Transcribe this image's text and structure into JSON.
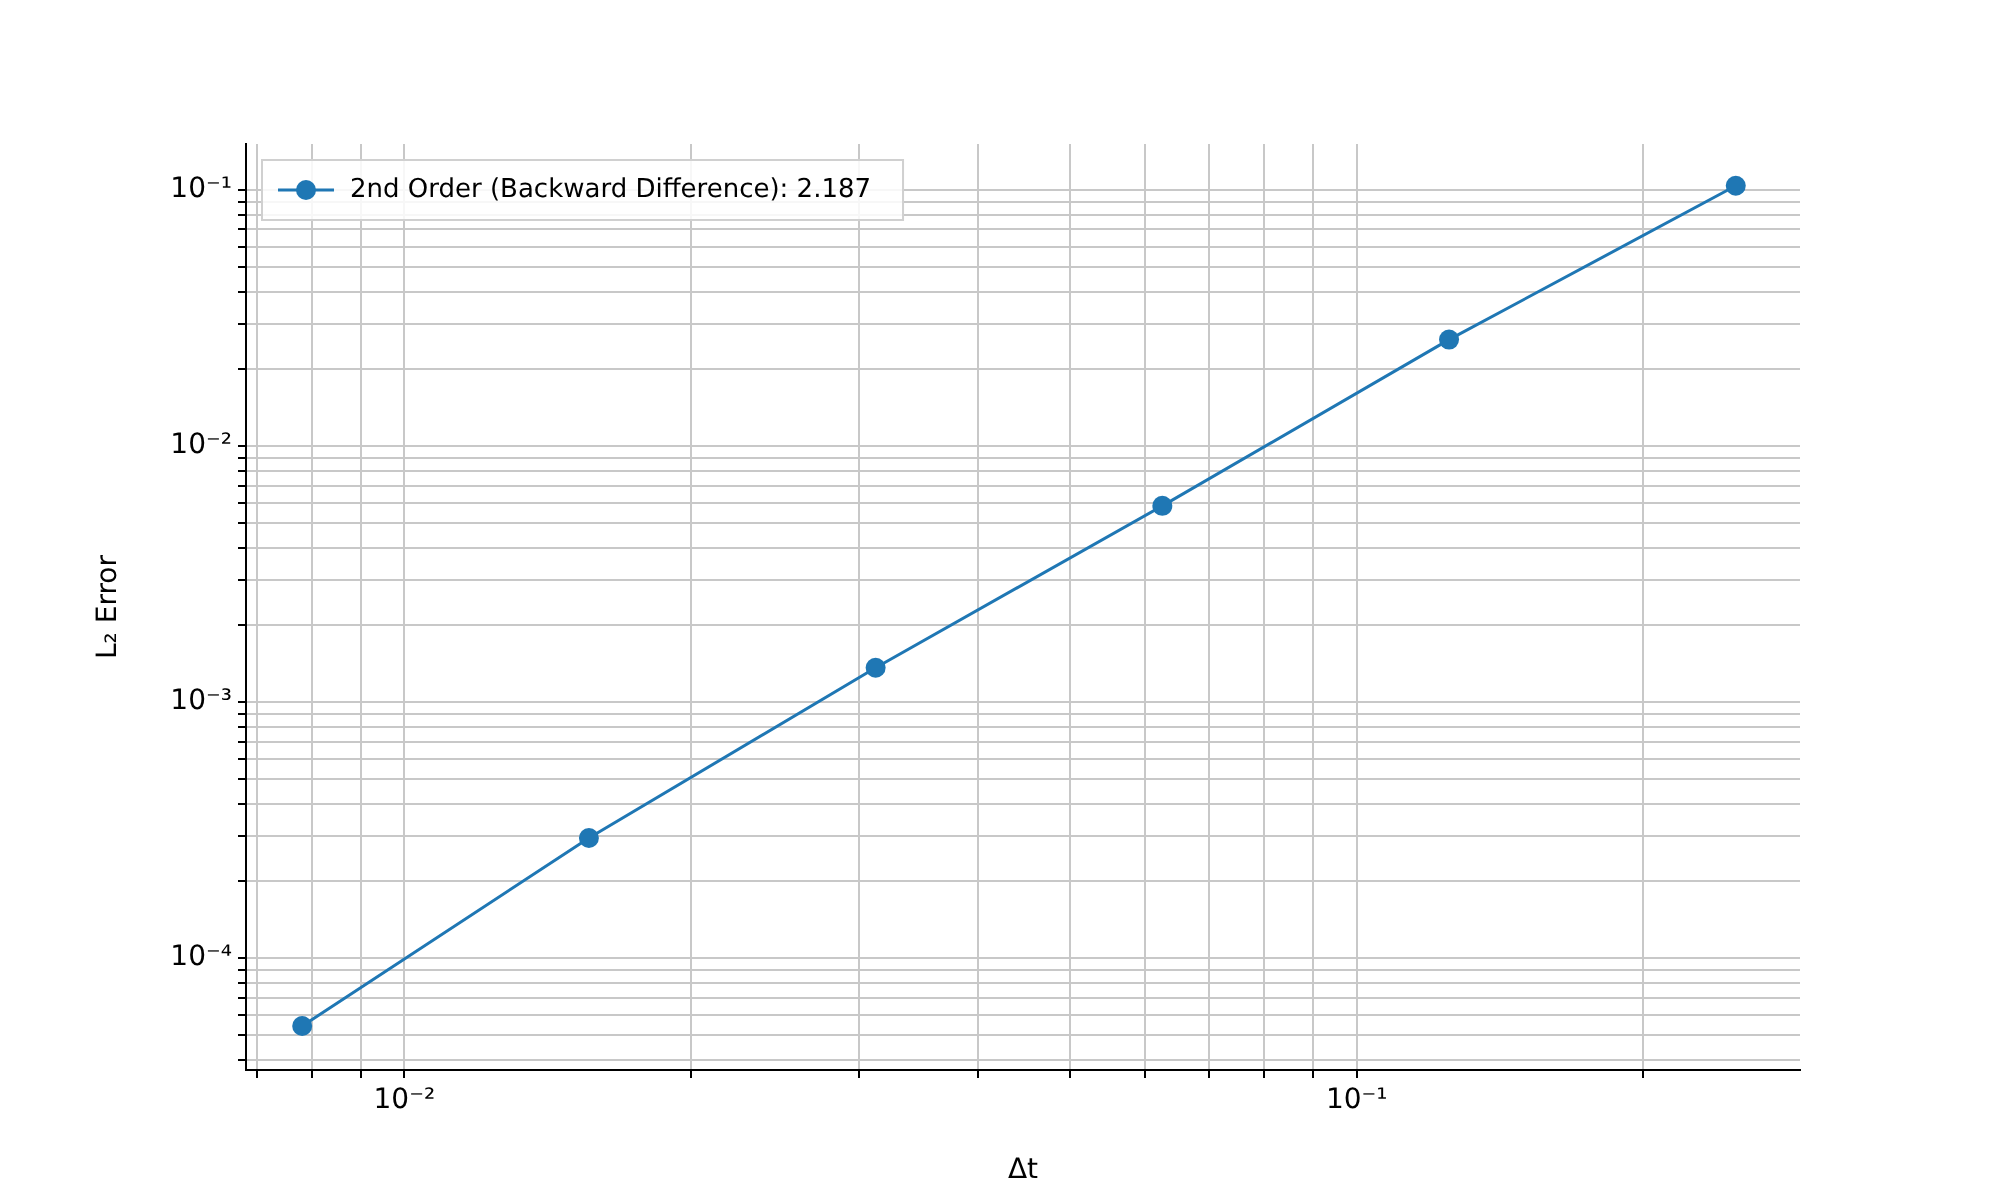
{
  "chart_data": {
    "type": "line",
    "xlabel": "Δt",
    "ylabel": "L₂ Error",
    "log": "xy",
    "grid": true,
    "legend": "top left",
    "marker": "circle",
    "line_style": "solid",
    "x": [
      0.0078125,
      0.015625,
      0.03125,
      0.0625,
      0.125,
      0.25
    ],
    "series": [
      {
        "name": "2nd Order (Backward Difference): 2.187",
        "color": "#1f77b4",
        "values": [
          5.42e-05,
          0.000294,
          0.00136,
          0.00583,
          0.026,
          0.1037
        ]
      }
    ],
    "xlim": [
      0.00682,
      0.292
    ],
    "ylim": [
      3.65e-05,
      0.151
    ],
    "xticks": [
      {
        "value": 0.007,
        "label": null
      },
      {
        "value": 0.008,
        "label": null
      },
      {
        "value": 0.009,
        "label": null
      },
      {
        "value": 0.01,
        "label": "10⁻²"
      },
      {
        "value": 0.02,
        "label": null
      },
      {
        "value": 0.03,
        "label": null
      },
      {
        "value": 0.04,
        "label": null
      },
      {
        "value": 0.05,
        "label": null
      },
      {
        "value": 0.06,
        "label": null
      },
      {
        "value": 0.07,
        "label": null
      },
      {
        "value": 0.08,
        "label": null
      },
      {
        "value": 0.09,
        "label": null
      },
      {
        "value": 0.1,
        "label": "10⁻¹"
      },
      {
        "value": 0.2,
        "label": null
      }
    ],
    "yticks": [
      {
        "value": 4e-05,
        "label": null
      },
      {
        "value": 5e-05,
        "label": null
      },
      {
        "value": 6e-05,
        "label": null
      },
      {
        "value": 7e-05,
        "label": null
      },
      {
        "value": 8e-05,
        "label": null
      },
      {
        "value": 9e-05,
        "label": null
      },
      {
        "value": 0.0001,
        "label": "10⁻⁴"
      },
      {
        "value": 0.0002,
        "label": null
      },
      {
        "value": 0.0003,
        "label": null
      },
      {
        "value": 0.0004,
        "label": null
      },
      {
        "value": 0.0005,
        "label": null
      },
      {
        "value": 0.0006,
        "label": null
      },
      {
        "value": 0.0007,
        "label": null
      },
      {
        "value": 0.0008,
        "label": null
      },
      {
        "value": 0.0009,
        "label": null
      },
      {
        "value": 0.001,
        "label": "10⁻³"
      },
      {
        "value": 0.002,
        "label": null
      },
      {
        "value": 0.003,
        "label": null
      },
      {
        "value": 0.004,
        "label": null
      },
      {
        "value": 0.005,
        "label": null
      },
      {
        "value": 0.006,
        "label": null
      },
      {
        "value": 0.007,
        "label": null
      },
      {
        "value": 0.008,
        "label": null
      },
      {
        "value": 0.009,
        "label": null
      },
      {
        "value": 0.01,
        "label": "10⁻²"
      },
      {
        "value": 0.02,
        "label": null
      },
      {
        "value": 0.03,
        "label": null
      },
      {
        "value": 0.04,
        "label": null
      },
      {
        "value": 0.05,
        "label": null
      },
      {
        "value": 0.06,
        "label": null
      },
      {
        "value": 0.07,
        "label": null
      },
      {
        "value": 0.08,
        "label": null
      },
      {
        "value": 0.09,
        "label": null
      },
      {
        "value": 0.1,
        "label": "10⁻¹"
      }
    ]
  }
}
